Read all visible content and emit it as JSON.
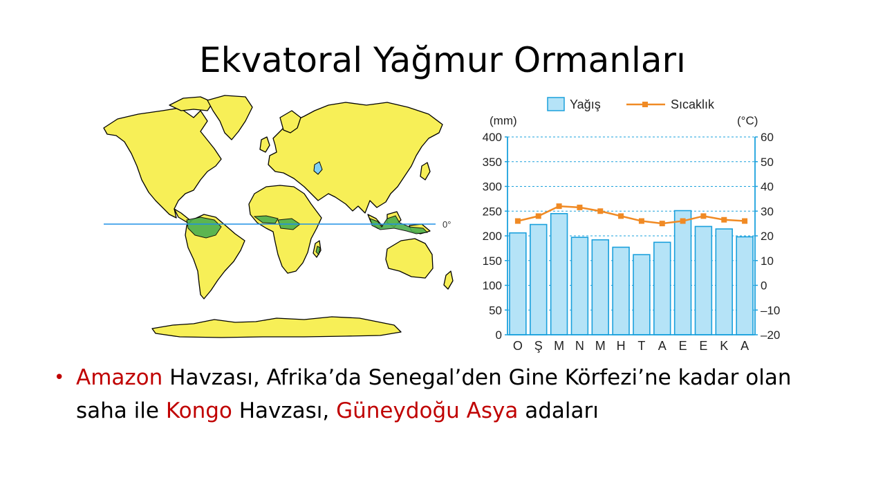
{
  "slide": {
    "title": "Ekvatoral Yağmur Ormanları"
  },
  "map": {
    "equator_label": "0°",
    "colors": {
      "land": "#f7ef57",
      "rainforest": "#4caf50",
      "water": "#7fd0f5",
      "equator": "#1e90e6"
    }
  },
  "bullet": {
    "parts": [
      {
        "text": "Amazon",
        "highlight": true
      },
      {
        "text": " Havzası, Afrika’da Senegal’den Gine Körfezi’ne kadar olan saha ile ",
        "highlight": false
      },
      {
        "text": "Kongo",
        "highlight": true
      },
      {
        "text": " Havzası, ",
        "highlight": false
      },
      {
        "text": "Güneydoğu Asya",
        "highlight": true
      },
      {
        "text": " adaları",
        "highlight": false
      }
    ]
  },
  "chart_data": {
    "type": "bar",
    "categories": [
      "O",
      "Ş",
      "M",
      "N",
      "M",
      "H",
      "T",
      "A",
      "E",
      "E",
      "K",
      "A"
    ],
    "series": [
      {
        "name": "Yağış",
        "type": "bar",
        "axis": "left",
        "values": [
          206,
          223,
          245,
          197,
          192,
          177,
          162,
          187,
          251,
          219,
          214,
          198
        ]
      },
      {
        "name": "Sıcaklık",
        "type": "line",
        "axis": "right",
        "values": [
          26,
          28,
          32,
          31.5,
          30,
          28,
          26,
          25,
          26,
          28,
          26.5,
          26
        ]
      }
    ],
    "ylabel_left": "(mm)",
    "ylabel_right": "(°C)",
    "ylim_left": [
      0,
      400
    ],
    "ylim_right": [
      -20,
      60
    ],
    "yticks_left": [
      "400",
      "350",
      "300",
      "250",
      "200",
      "150",
      "100",
      "50",
      "0"
    ],
    "yticks_right": [
      "60",
      "50",
      "40",
      "30",
      "20",
      "10",
      "0",
      "–10",
      "–20"
    ],
    "grid": true,
    "legend_position": "top",
    "colors": {
      "bar_fill": "#b5e3f7",
      "bar_stroke": "#1aa0dc",
      "line": "#f08a24",
      "axis": "#1aa0dc"
    }
  }
}
